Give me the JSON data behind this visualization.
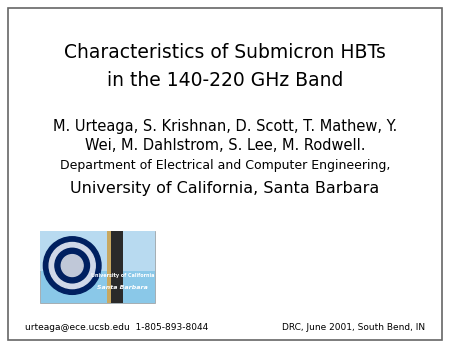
{
  "title_line1": "Characteristics of Submicron HBTs",
  "title_line2": "in the 140-220 GHz Band",
  "author_line1": "M. Urteaga, S. Krishnan, D. Scott, T. Mathew, Y.",
  "author_line2": "Wei, M. Dahlstrom, S. Lee, M. Rodwell.",
  "dept_line": "Department of Electrical and Computer Engineering,",
  "univ_line": "University of California, Santa Barbara",
  "footer_left": "urteaga@ece.ucsb.edu  1-805-893-8044",
  "footer_right": "DRC, June 2001, South Bend, IN",
  "bg_color": "#ffffff",
  "border_color": "#666666",
  "text_color": "#000000",
  "title_fontsize": 13.5,
  "author_fontsize": 10.5,
  "dept_fontsize": 9,
  "univ_fontsize": 11.5,
  "footer_fontsize": 6.5
}
